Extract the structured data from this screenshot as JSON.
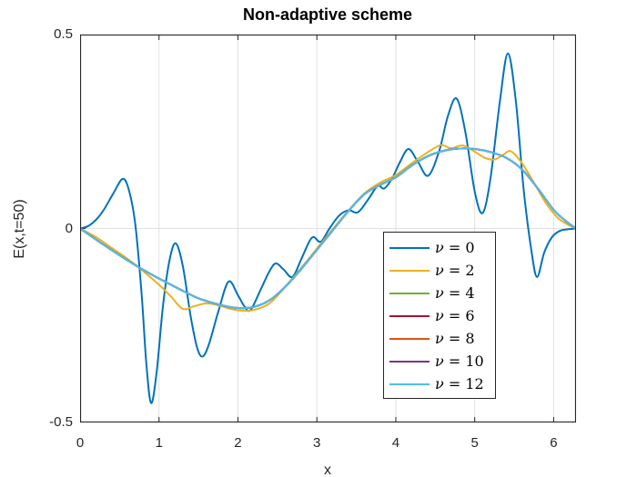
{
  "chart_data": {
    "type": "line",
    "title": "Non-adaptive scheme",
    "xlabel": "x",
    "ylabel": "E(x,t=50)",
    "xlim": [
      0,
      6.2832
    ],
    "ylim": [
      -0.5,
      0.5
    ],
    "xticks": {
      "values": [
        0,
        1,
        2,
        3,
        4,
        5,
        6
      ],
      "labels": [
        "0",
        "1",
        "2",
        "3",
        "4",
        "5",
        "6"
      ]
    },
    "yticks": {
      "values": [
        -0.5,
        0,
        0.5
      ],
      "labels": [
        "-0.5",
        "0",
        "0.5"
      ]
    },
    "grid": true,
    "colors": {
      "background": "#ffffff",
      "axis": "#262626",
      "grid": "#e0e0e0",
      "title_text": "#000000",
      "tick_text": "#262626"
    },
    "legend": {
      "position": "inside-right-center",
      "border_color": "#262626",
      "background": "#ffffff"
    },
    "note": "Series nu=4,6,8,10,12 visually coincide on the smooth base curve (cyan nu=12 drawn on top); nu=0 is highly oscillatory, nu=2 mildly oscillatory.",
    "base_curve": {
      "x": [
        0,
        0.3,
        0.6,
        0.9,
        1.2,
        1.5,
        1.8,
        2.0,
        2.2,
        2.4,
        2.6,
        2.8,
        3.0,
        3.2,
        3.4,
        3.6,
        3.8,
        4.0,
        4.2,
        4.4,
        4.6,
        4.8,
        5.0,
        5.2,
        5.4,
        5.6,
        5.8,
        6.0,
        6.15,
        6.283
      ],
      "y": [
        0,
        -0.042,
        -0.082,
        -0.118,
        -0.15,
        -0.18,
        -0.198,
        -0.205,
        -0.202,
        -0.185,
        -0.15,
        -0.105,
        -0.055,
        -0.005,
        0.045,
        0.088,
        0.112,
        0.132,
        0.162,
        0.186,
        0.2,
        0.206,
        0.205,
        0.197,
        0.182,
        0.152,
        0.103,
        0.048,
        0.02,
        0
      ]
    },
    "series": [
      {
        "label": "ν = 0",
        "nu": 0,
        "color": "#0072BD",
        "x": [
          0,
          0.1,
          0.2,
          0.3,
          0.42,
          0.54,
          0.62,
          0.7,
          0.78,
          0.84,
          0.9,
          0.97,
          1.05,
          1.13,
          1.21,
          1.3,
          1.4,
          1.48,
          1.55,
          1.63,
          1.75,
          1.88,
          2.0,
          2.08,
          2.16,
          2.3,
          2.4,
          2.48,
          2.58,
          2.69,
          2.8,
          2.9,
          2.96,
          3.05,
          3.16,
          3.28,
          3.4,
          3.52,
          3.65,
          3.77,
          3.85,
          3.95,
          4.05,
          4.16,
          4.28,
          4.41,
          4.55,
          4.66,
          4.77,
          4.88,
          5.0,
          5.1,
          5.2,
          5.32,
          5.42,
          5.52,
          5.62,
          5.72,
          5.79,
          5.88,
          5.98,
          6.08,
          6.18,
          6.283
        ],
        "y": [
          0,
          0.006,
          0.022,
          0.048,
          0.09,
          0.128,
          0.098,
          0.01,
          -0.17,
          -0.35,
          -0.45,
          -0.37,
          -0.2,
          -0.085,
          -0.038,
          -0.095,
          -0.225,
          -0.305,
          -0.33,
          -0.3,
          -0.215,
          -0.137,
          -0.172,
          -0.2,
          -0.21,
          -0.152,
          -0.11,
          -0.09,
          -0.106,
          -0.125,
          -0.08,
          -0.035,
          -0.022,
          -0.034,
          0.0,
          0.033,
          0.047,
          0.042,
          0.075,
          0.11,
          0.103,
          0.128,
          0.17,
          0.205,
          0.172,
          0.136,
          0.2,
          0.29,
          0.335,
          0.25,
          0.095,
          0.04,
          0.13,
          0.33,
          0.451,
          0.33,
          0.1,
          -0.06,
          -0.125,
          -0.062,
          -0.022,
          -0.006,
          -0.002,
          0
        ]
      },
      {
        "label": "ν = 2",
        "nu": 2,
        "color": "#EDB120",
        "x": [
          0,
          0.2,
          0.4,
          0.6,
          0.8,
          1.0,
          1.15,
          1.3,
          1.45,
          1.6,
          1.75,
          1.9,
          2.05,
          2.2,
          2.4,
          2.6,
          2.8,
          3.0,
          3.2,
          3.4,
          3.6,
          3.8,
          4.0,
          4.2,
          4.4,
          4.57,
          4.7,
          4.85,
          5.0,
          5.13,
          5.25,
          5.36,
          5.46,
          5.6,
          5.75,
          5.9,
          6.05,
          6.18,
          6.283
        ],
        "y": [
          0,
          -0.022,
          -0.05,
          -0.078,
          -0.11,
          -0.145,
          -0.175,
          -0.207,
          -0.2,
          -0.193,
          -0.198,
          -0.207,
          -0.212,
          -0.21,
          -0.193,
          -0.15,
          -0.102,
          -0.052,
          -0.002,
          0.046,
          0.09,
          0.118,
          0.138,
          0.168,
          0.196,
          0.215,
          0.207,
          0.214,
          0.198,
          0.182,
          0.178,
          0.19,
          0.199,
          0.168,
          0.118,
          0.066,
          0.028,
          0.01,
          0
        ]
      },
      {
        "label": "ν = 4",
        "nu": 4,
        "color": "#77AC30",
        "use_base_curve": true
      },
      {
        "label": "ν = 6",
        "nu": 6,
        "color": "#A2142F",
        "use_base_curve": true
      },
      {
        "label": "ν = 8",
        "nu": 8,
        "color": "#D95319",
        "use_base_curve": true
      },
      {
        "label": "ν = 10",
        "nu": 10,
        "color": "#7E2F8E",
        "use_base_curve": true
      },
      {
        "label": "ν = 12",
        "nu": 12,
        "color": "#4DBEEE",
        "use_base_curve": true
      }
    ]
  }
}
